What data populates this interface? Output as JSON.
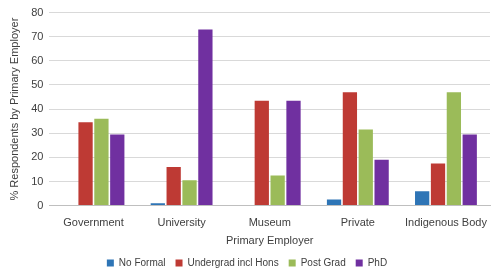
{
  "chart_data": {
    "type": "bar",
    "x_label": "Primary Employer",
    "y_label": "% Respondents by Primary Employer",
    "categories": [
      "Government",
      "University",
      "Museum",
      "Private",
      "Indigenous Body"
    ],
    "series": [
      {
        "name": "No Formal",
        "color": "#2e75b6",
        "values": [
          0,
          1,
          0,
          2.5,
          6
        ]
      },
      {
        "name": "Undergrad incl Hons",
        "color": "#be3a34",
        "values": [
          34.5,
          16,
          43.5,
          47,
          17.5
        ]
      },
      {
        "name": "Post Grad",
        "color": "#9bbb59",
        "values": [
          36,
          10.5,
          12.5,
          31.5,
          47
        ]
      },
      {
        "name": "PhD",
        "color": "#7030a0",
        "values": [
          29.5,
          73,
          43.5,
          19,
          29.5
        ]
      }
    ],
    "ylim": [
      0,
      80
    ],
    "yticks": [
      0,
      10,
      20,
      30,
      40,
      50,
      60,
      70,
      80
    ],
    "grid": true,
    "legend": "bottom"
  }
}
